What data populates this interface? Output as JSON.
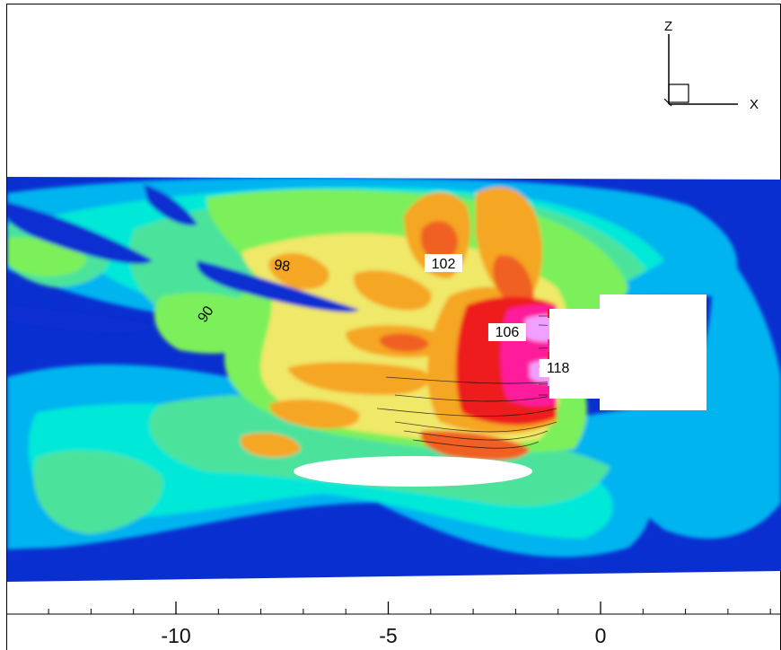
{
  "chart_data": {
    "type": "contour",
    "xlim": [
      -14,
      4.2
    ],
    "x_ticks": [
      {
        "value": -10,
        "label": "-10"
      },
      {
        "value": -5,
        "label": "-5"
      },
      {
        "value": 0,
        "label": "0"
      }
    ],
    "minor_tick_step": 1,
    "contour_labels": [
      {
        "x": -7.5,
        "label": "98"
      },
      {
        "x": -9.3,
        "label": "90"
      },
      {
        "x": -3.7,
        "label": "102"
      },
      {
        "x": -2.2,
        "label": "106"
      },
      {
        "x": -1.0,
        "label": "118"
      }
    ],
    "triad": {
      "x_label": "X",
      "z_label": "Z"
    },
    "colormap": [
      "#0a2fd0",
      "#1f66ee",
      "#00b4f0",
      "#00e8d8",
      "#4ce39c",
      "#7cf05a",
      "#b9f030",
      "#f0e868",
      "#f5a623",
      "#f06020",
      "#ee1a1a",
      "#ff1d9c",
      "#f0a0ff"
    ]
  }
}
